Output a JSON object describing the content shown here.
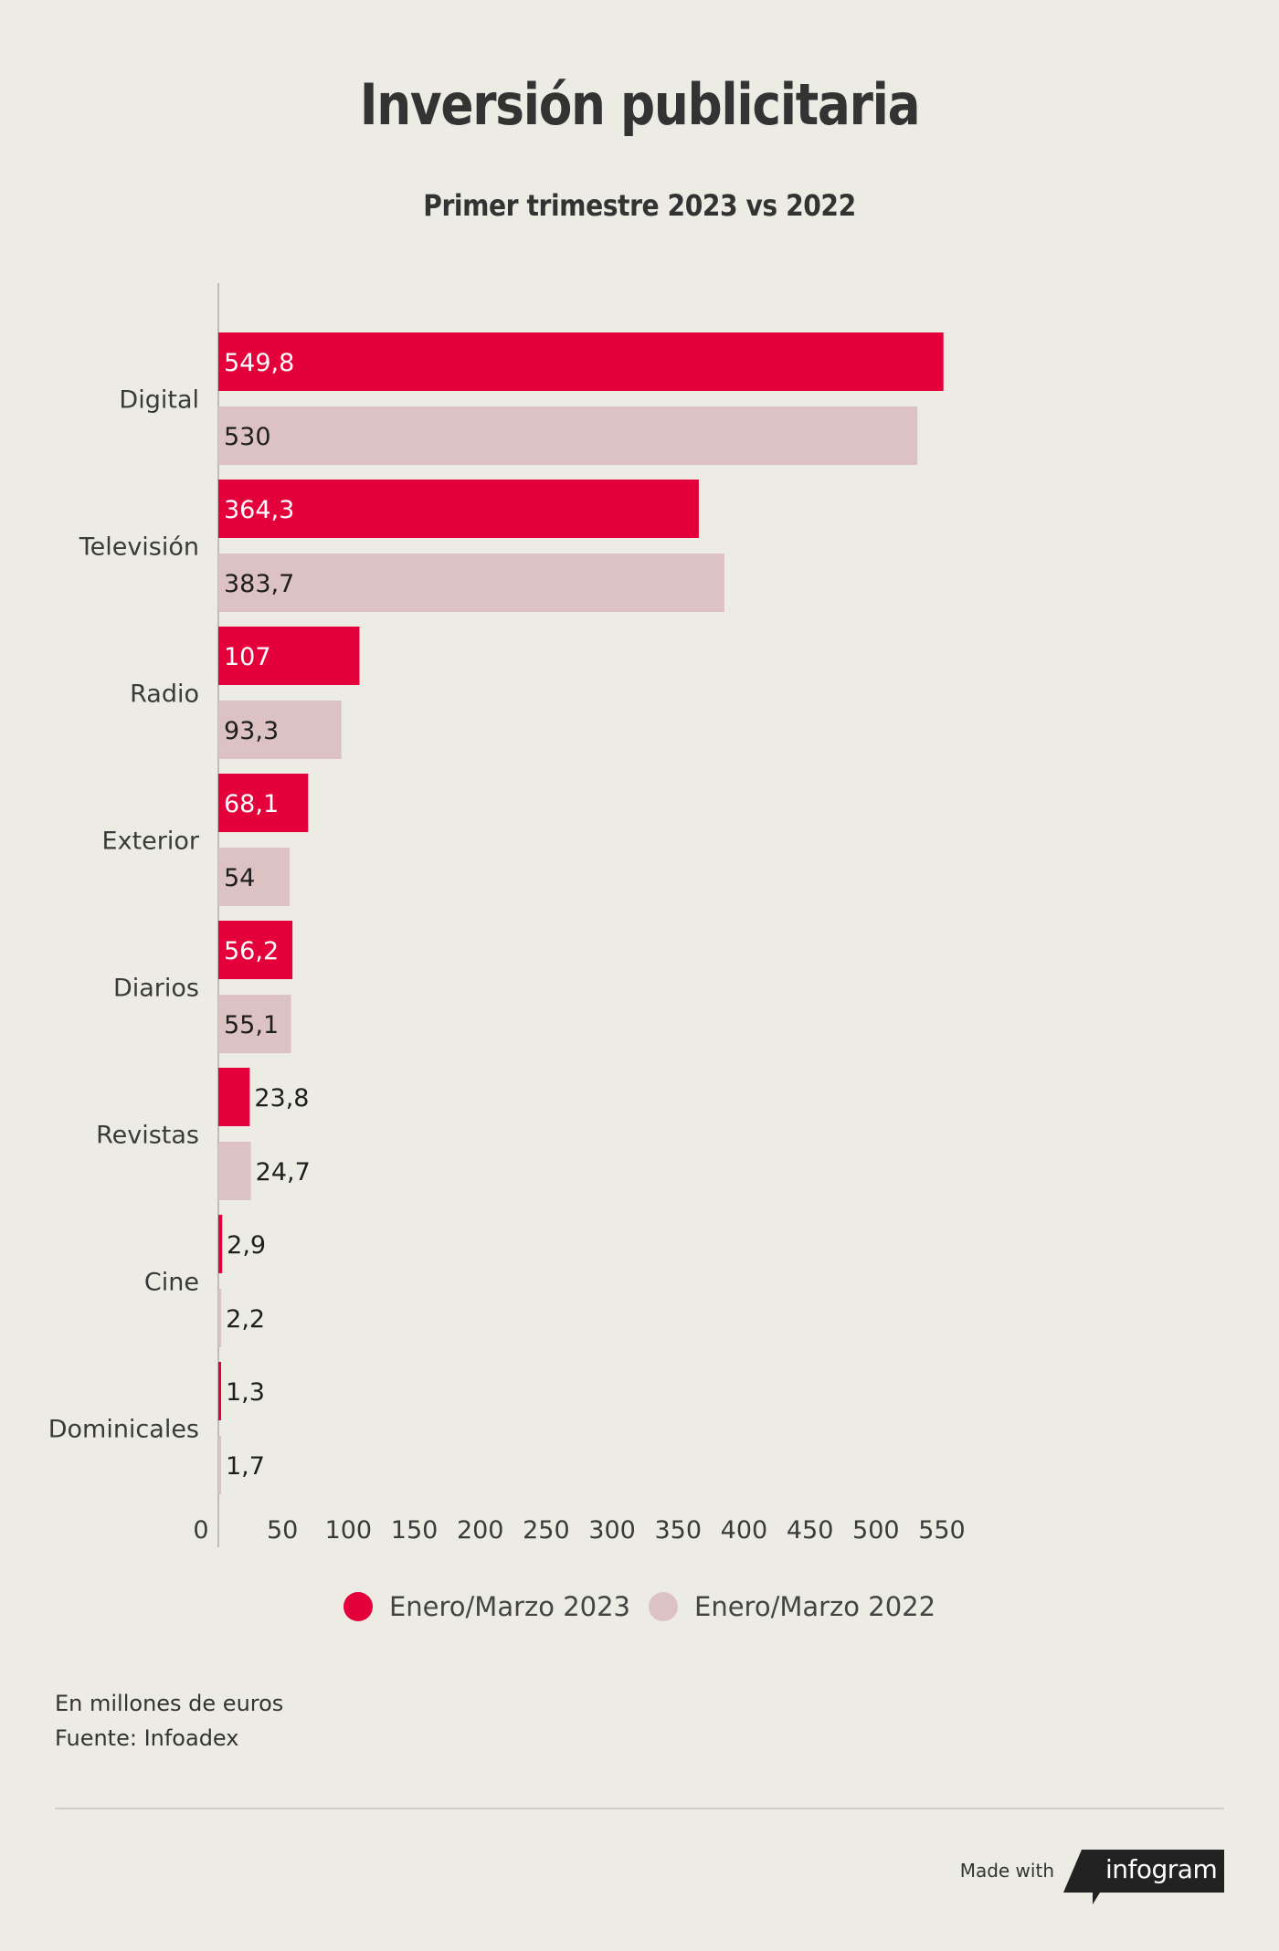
{
  "title": "Inversión publicitaria",
  "subtitle": "Primer trimestre 2023 vs 2022",
  "chart_data": {
    "type": "bar",
    "orientation": "horizontal",
    "categories": [
      "Digital",
      "Televisión",
      "Radio",
      "Exterior",
      "Diarios",
      "Revistas",
      "Cine",
      "Dominicales"
    ],
    "series": [
      {
        "name": "Enero/Marzo 2023",
        "color": "#e4003b",
        "values": [
          549.8,
          364.3,
          107,
          68.1,
          56.2,
          23.8,
          2.9,
          1.3
        ],
        "labels": [
          "549,8",
          "364,3",
          "107",
          "68,1",
          "56,2",
          "23,8",
          "2,9",
          "1,3"
        ]
      },
      {
        "name": "Enero/Marzo 2022",
        "color": "#ddc2c4",
        "values": [
          530,
          383.7,
          93.3,
          54,
          55.1,
          24.7,
          2.2,
          1.7
        ],
        "labels": [
          "530",
          "383,7",
          "93,3",
          "54",
          "55,1",
          "24,7",
          "2,2",
          "1,7"
        ]
      }
    ],
    "x_ticks": [
      0,
      50,
      100,
      150,
      200,
      250,
      300,
      350,
      400,
      450,
      500,
      550
    ],
    "xlim": [
      0,
      550
    ],
    "grid": false,
    "legend_position": "bottom"
  },
  "notes": {
    "units": "En millones de euros",
    "source": "Fuente: Infoadex"
  },
  "footer": {
    "made_with": "Made with",
    "brand": "infogram"
  }
}
